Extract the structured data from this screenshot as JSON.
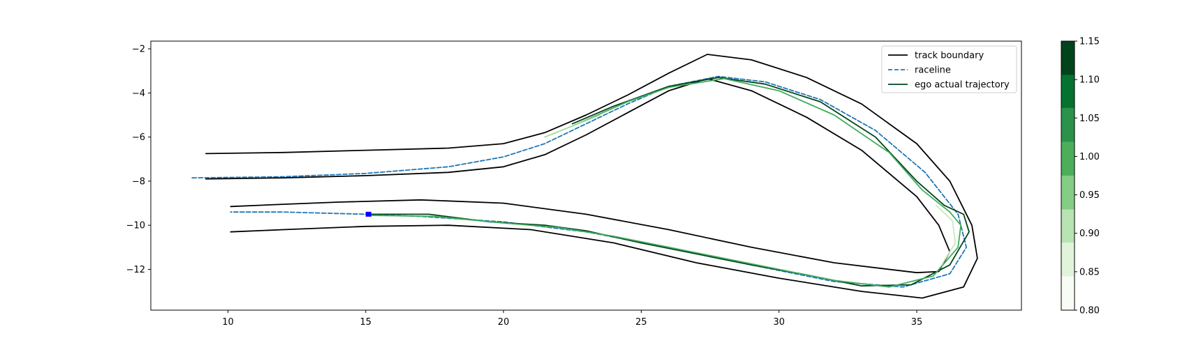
{
  "chart_data": {
    "type": "line",
    "title": "",
    "xlabel": "",
    "ylabel": "",
    "xlim": [
      7.2,
      38.8
    ],
    "ylim": [
      -13.85,
      -1.65
    ],
    "xticks": [
      10,
      15,
      20,
      25,
      30,
      35
    ],
    "yticks": [
      -2,
      -4,
      -6,
      -8,
      -10,
      -12
    ],
    "xtick_labels": [
      "10",
      "15",
      "20",
      "25",
      "30",
      "35"
    ],
    "ytick_labels": [
      "−2",
      "−4",
      "−6",
      "−8",
      "−10",
      "−12"
    ],
    "grid": false,
    "legend_position": "top-right",
    "legend": [
      {
        "name": "track boundary",
        "color": "#000000",
        "style": "solid"
      },
      {
        "name": "raceline",
        "color": "#1f77b4",
        "style": "dashed"
      },
      {
        "name": "ego actual trajectory",
        "color": "#00441b",
        "style": "solid"
      }
    ],
    "series": [
      {
        "name": "track boundary",
        "role": "outer-top",
        "color": "#000000",
        "points": [
          [
            9.2,
            -6.75
          ],
          [
            12,
            -6.7
          ],
          [
            15,
            -6.6
          ],
          [
            18,
            -6.5
          ],
          [
            20,
            -6.3
          ],
          [
            21.5,
            -5.8
          ],
          [
            23,
            -5.0
          ],
          [
            24.5,
            -4.1
          ],
          [
            26,
            -3.1
          ],
          [
            27.4,
            -2.25
          ],
          [
            29,
            -2.5
          ],
          [
            31,
            -3.3
          ],
          [
            33,
            -4.5
          ],
          [
            35,
            -6.3
          ],
          [
            36.2,
            -8.0
          ],
          [
            37,
            -10.0
          ],
          [
            37.2,
            -11.5
          ],
          [
            36.7,
            -12.8
          ],
          [
            35.2,
            -13.3
          ],
          [
            33,
            -13.0
          ],
          [
            30,
            -12.4
          ],
          [
            27,
            -11.7
          ],
          [
            24,
            -10.8
          ],
          [
            21,
            -10.2
          ],
          [
            18,
            -10.0
          ],
          [
            15,
            -10.05
          ],
          [
            12,
            -10.2
          ],
          [
            10.1,
            -10.3
          ]
        ]
      },
      {
        "name": "track boundary",
        "role": "inner",
        "color": "#000000",
        "points": [
          [
            9.2,
            -7.9
          ],
          [
            12,
            -7.85
          ],
          [
            15,
            -7.75
          ],
          [
            18,
            -7.6
          ],
          [
            20,
            -7.35
          ],
          [
            21.5,
            -6.8
          ],
          [
            23,
            -5.9
          ],
          [
            24.5,
            -4.9
          ],
          [
            26,
            -3.9
          ],
          [
            27.4,
            -3.35
          ],
          [
            29,
            -3.9
          ],
          [
            31,
            -5.1
          ],
          [
            33,
            -6.6
          ],
          [
            35,
            -8.7
          ],
          [
            35.8,
            -10.0
          ],
          [
            36.2,
            -11.2
          ],
          [
            35.8,
            -12.1
          ],
          [
            35,
            -12.15
          ],
          [
            32,
            -11.7
          ],
          [
            29,
            -11.0
          ],
          [
            26,
            -10.2
          ],
          [
            23,
            -9.5
          ],
          [
            20,
            -9.0
          ],
          [
            17,
            -8.85
          ],
          [
            14,
            -8.95
          ],
          [
            12,
            -9.05
          ],
          [
            10.1,
            -9.15
          ]
        ]
      },
      {
        "name": "raceline",
        "color": "#1f77b4",
        "points": [
          [
            8.7,
            -7.85
          ],
          [
            12,
            -7.8
          ],
          [
            15,
            -7.65
          ],
          [
            18,
            -7.35
          ],
          [
            20,
            -6.9
          ],
          [
            21.5,
            -6.3
          ],
          [
            23,
            -5.4
          ],
          [
            24.5,
            -4.5
          ],
          [
            26,
            -3.7
          ],
          [
            27.8,
            -3.25
          ],
          [
            29.5,
            -3.5
          ],
          [
            31.5,
            -4.3
          ],
          [
            33.5,
            -5.7
          ],
          [
            35.3,
            -7.6
          ],
          [
            36.5,
            -9.5
          ],
          [
            36.8,
            -11.0
          ],
          [
            36.2,
            -12.2
          ],
          [
            34.5,
            -12.8
          ],
          [
            32,
            -12.55
          ],
          [
            29,
            -11.8
          ],
          [
            26,
            -11.0
          ],
          [
            23,
            -10.3
          ],
          [
            20,
            -9.85
          ],
          [
            17,
            -9.6
          ],
          [
            15,
            -9.5
          ],
          [
            12,
            -9.4
          ],
          [
            10.1,
            -9.4
          ]
        ]
      },
      {
        "name": "ego actual trajectory",
        "color": "#00441b",
        "points": [
          [
            15.1,
            -9.5
          ],
          [
            17.3,
            -9.5
          ],
          [
            19.5,
            -9.85
          ],
          [
            21.5,
            -10.0
          ],
          [
            23,
            -10.25
          ],
          [
            25,
            -10.8
          ],
          [
            27,
            -11.3
          ],
          [
            29,
            -11.8
          ],
          [
            31,
            -12.25
          ],
          [
            33,
            -12.75
          ],
          [
            34.8,
            -12.7
          ],
          [
            36.2,
            -11.8
          ],
          [
            36.9,
            -10.3
          ],
          [
            36.7,
            -9.5
          ],
          [
            36,
            -9.1
          ],
          [
            35,
            -8.0
          ],
          [
            33.5,
            -6.0
          ],
          [
            31.5,
            -4.4
          ],
          [
            29.5,
            -3.6
          ],
          [
            27.8,
            -3.3
          ],
          [
            26,
            -3.7
          ],
          [
            24,
            -4.6
          ],
          [
            22.5,
            -5.4
          ]
        ]
      },
      {
        "name": "ego actual trajectory",
        "color": "#41ab5d",
        "points": [
          [
            15.1,
            -9.55
          ],
          [
            17.5,
            -9.6
          ],
          [
            20,
            -9.9
          ],
          [
            22,
            -10.1
          ],
          [
            24,
            -10.5
          ],
          [
            26,
            -11.0
          ],
          [
            28,
            -11.5
          ],
          [
            30,
            -12.0
          ],
          [
            32,
            -12.5
          ],
          [
            34,
            -12.8
          ],
          [
            35.6,
            -12.3
          ],
          [
            36.5,
            -11.0
          ],
          [
            36.6,
            -10.0
          ],
          [
            36.2,
            -9.4
          ],
          [
            35.2,
            -8.4
          ],
          [
            34,
            -6.7
          ],
          [
            32,
            -5.0
          ],
          [
            30,
            -3.9
          ],
          [
            28,
            -3.35
          ],
          [
            26,
            -3.75
          ],
          [
            24.5,
            -4.4
          ],
          [
            22.5,
            -5.5
          ]
        ]
      },
      {
        "name": "ego actual trajectory",
        "color": "#a1d99b",
        "points": [
          [
            21.5,
            -6.0
          ],
          [
            22.5,
            -5.5
          ],
          [
            23.5,
            -5.0
          ]
        ]
      },
      {
        "name": "ego actual trajectory",
        "color": "#c7e9c0",
        "points": [
          [
            35.9,
            -11.8
          ],
          [
            36.4,
            -10.8
          ],
          [
            36.3,
            -9.8
          ],
          [
            35.7,
            -9.1
          ]
        ]
      },
      {
        "name": "ego start marker",
        "color": "#0000ff",
        "points": [
          [
            15.1,
            -9.5
          ]
        ]
      }
    ],
    "colorbar": {
      "min": 0.8,
      "max": 1.15,
      "tick_values": [
        0.8,
        0.85,
        0.9,
        0.95,
        1.0,
        1.05,
        1.1,
        1.15
      ],
      "tick_labels": [
        "0.80",
        "0.85",
        "0.90",
        "0.95",
        "1.00",
        "1.05",
        "1.10",
        "1.15"
      ],
      "bands": [
        {
          "from": 0.8,
          "to": 0.844,
          "color": "#f7fcf5"
        },
        {
          "from": 0.844,
          "to": 0.888,
          "color": "#e0f3db"
        },
        {
          "from": 0.888,
          "to": 0.931,
          "color": "#b8e3b2"
        },
        {
          "from": 0.931,
          "to": 0.975,
          "color": "#85cc84"
        },
        {
          "from": 0.975,
          "to": 1.019,
          "color": "#4cae5b"
        },
        {
          "from": 1.019,
          "to": 1.063,
          "color": "#2a924a"
        },
        {
          "from": 1.063,
          "to": 1.106,
          "color": "#067230"
        },
        {
          "from": 1.106,
          "to": 1.15,
          "color": "#00441b"
        }
      ]
    }
  }
}
